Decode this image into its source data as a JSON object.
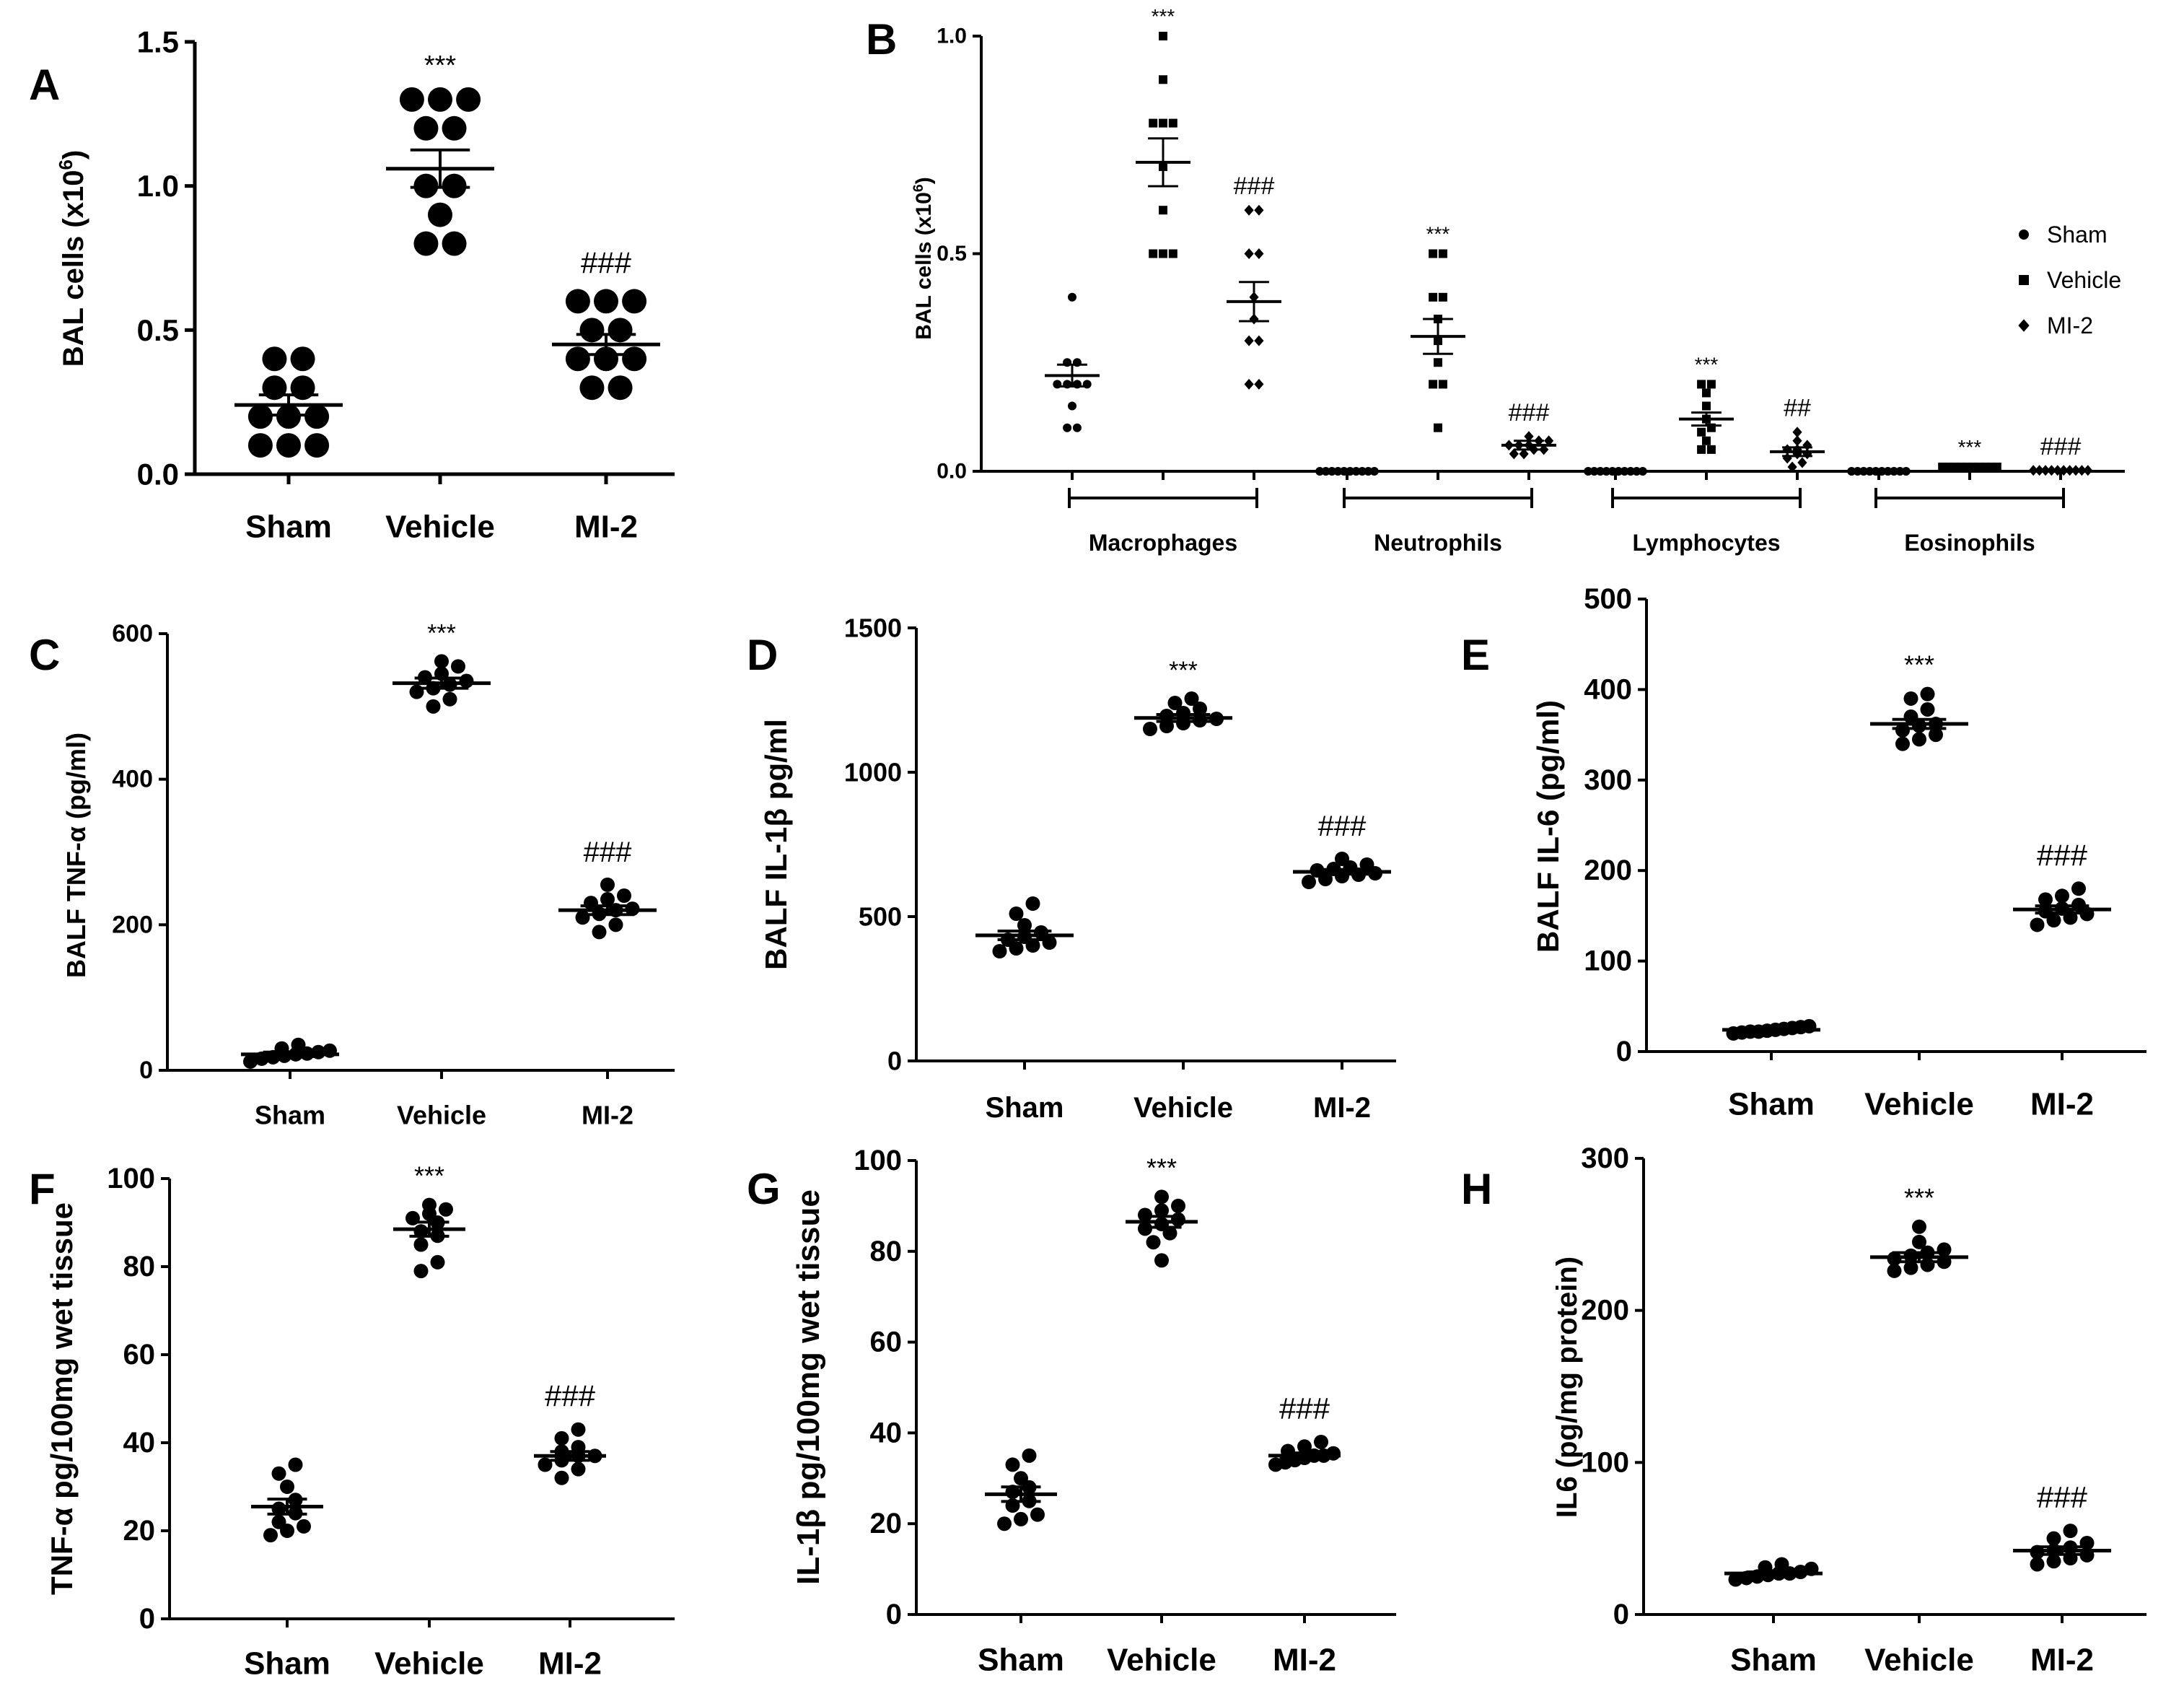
{
  "chart_data": [
    {
      "id": "A",
      "panel_label": "A",
      "type": "scatter",
      "title": "",
      "xlabel": "",
      "ylabel": "BAL cells (x10",
      "ylabel_sup": "6",
      "ylabel_end": ")",
      "categories": [
        "Sham",
        "Vehicle",
        "MI-2"
      ],
      "ylim": [
        0,
        1.5
      ],
      "yticks": [
        0,
        0.5,
        1,
        1.5
      ],
      "ytick_labels": [
        "0.0",
        "0.5",
        "1.0",
        "1.5"
      ],
      "significance": [
        "",
        "***",
        "###"
      ],
      "means": [
        0.24,
        1.06,
        0.45
      ],
      "sem": [
        0.035,
        0.065,
        0.035
      ],
      "points": [
        [
          0.1,
          0.1,
          0.1,
          0.2,
          0.2,
          0.2,
          0.3,
          0.3,
          0.4,
          0.4
        ],
        [
          0.8,
          0.8,
          0.9,
          1.0,
          1.0,
          1.2,
          1.2,
          1.3,
          1.3,
          1.3
        ],
        [
          0.3,
          0.3,
          0.4,
          0.4,
          0.4,
          0.5,
          0.5,
          0.6,
          0.6,
          0.6
        ]
      ]
    },
    {
      "id": "B",
      "panel_label": "B",
      "type": "scatter",
      "title": "",
      "xlabel": "",
      "ylabel": "BAL cells (x10",
      "ylabel_sup": "6",
      "ylabel_end": ")",
      "groups": [
        "Macrophages",
        "Neutrophils",
        "Lymphocytes",
        "Eosinophils"
      ],
      "ylim": [
        0,
        1.0
      ],
      "yticks": [
        0,
        0.5,
        1.0
      ],
      "ytick_labels": [
        "0.0",
        "0.5",
        "1.0"
      ],
      "legend": [
        {
          "name": "Sham",
          "marker": "circle"
        },
        {
          "name": "Vehicle",
          "marker": "square"
        },
        {
          "name": "MI-2",
          "marker": "diamond"
        }
      ],
      "significance": [
        [
          "",
          "***",
          "###"
        ],
        [
          "",
          "***",
          "###"
        ],
        [
          "",
          "***",
          "##"
        ],
        [
          "",
          "***",
          "###"
        ]
      ],
      "means": [
        [
          0.22,
          0.71,
          0.39
        ],
        [
          0,
          0.31,
          0.06
        ],
        [
          0,
          0.12,
          0.045
        ],
        [
          0,
          0.01,
          0.002
        ]
      ],
      "sem": [
        [
          0.025,
          0.055,
          0.045
        ],
        [
          0,
          0.04,
          0.01
        ],
        [
          0,
          0.015,
          0.01
        ],
        [
          0,
          0.003,
          0.001
        ]
      ],
      "points": [
        [
          [
            0.1,
            0.1,
            0.15,
            0.2,
            0.2,
            0.2,
            0.2,
            0.25,
            0.25,
            0.4
          ],
          [
            0.5,
            0.5,
            0.5,
            0.6,
            0.7,
            0.8,
            0.8,
            0.8,
            0.9,
            1.0
          ],
          [
            0.2,
            0.2,
            0.3,
            0.3,
            0.35,
            0.4,
            0.5,
            0.5,
            0.6,
            0.6
          ]
        ],
        [
          [
            0,
            0,
            0,
            0,
            0,
            0,
            0,
            0,
            0,
            0
          ],
          [
            0.1,
            0.2,
            0.2,
            0.25,
            0.3,
            0.35,
            0.4,
            0.4,
            0.5,
            0.5
          ],
          [
            0.04,
            0.04,
            0.05,
            0.05,
            0.06,
            0.06,
            0.06,
            0.07,
            0.07,
            0.08
          ]
        ],
        [
          [
            0,
            0,
            0,
            0,
            0,
            0,
            0,
            0,
            0,
            0
          ],
          [
            0.05,
            0.05,
            0.07,
            0.09,
            0.1,
            0.12,
            0.15,
            0.18,
            0.2,
            0.2
          ],
          [
            0.01,
            0.02,
            0.03,
            0.04,
            0.04,
            0.05,
            0.05,
            0.06,
            0.07,
            0.09
          ]
        ],
        [
          [
            0,
            0,
            0,
            0,
            0,
            0,
            0,
            0,
            0,
            0
          ],
          [
            0.01,
            0.01,
            0.01,
            0.01,
            0.01,
            0.01,
            0.01,
            0.01,
            0.01,
            0.01
          ],
          [
            0.002,
            0.002,
            0.002,
            0.002,
            0.002,
            0.002,
            0.002,
            0.002,
            0.002,
            0.002
          ]
        ]
      ]
    },
    {
      "id": "C",
      "panel_label": "C",
      "type": "scatter",
      "title": "",
      "xlabel": "",
      "ylabel": "BALF TNF-α (pg/ml)",
      "categories": [
        "Sham",
        "Vehicle",
        "MI-2"
      ],
      "ylim": [
        0,
        600
      ],
      "yticks": [
        0,
        200,
        400,
        600
      ],
      "ytick_labels": [
        "0",
        "200",
        "400",
        "600"
      ],
      "significance": [
        "",
        "***",
        "###"
      ],
      "means": [
        22,
        532,
        220
      ],
      "sem": [
        3,
        7,
        6
      ],
      "points": [
        [
          12,
          16,
          18,
          20,
          22,
          23,
          25,
          27,
          30,
          35
        ],
        [
          500,
          510,
          520,
          525,
          530,
          535,
          540,
          545,
          555,
          562
        ],
        [
          190,
          200,
          210,
          215,
          220,
          222,
          230,
          235,
          240,
          255
        ]
      ]
    },
    {
      "id": "D",
      "panel_label": "D",
      "type": "scatter",
      "title": "",
      "xlabel": "",
      "ylabel": "BALF IL-1β  pg/ml",
      "categories": [
        "Sham",
        "Vehicle",
        "MI-2"
      ],
      "ylim": [
        0,
        1500
      ],
      "yticks": [
        0,
        500,
        1000,
        1500
      ],
      "ytick_labels": [
        "0",
        "500",
        "1000",
        "1500"
      ],
      "significance": [
        "",
        "***",
        "###"
      ],
      "means": [
        435,
        1188,
        655
      ],
      "sem": [
        15,
        12,
        8
      ],
      "points": [
        [
          380,
          390,
          400,
          410,
          420,
          430,
          445,
          470,
          510,
          545
        ],
        [
          1150,
          1160,
          1170,
          1180,
          1185,
          1195,
          1205,
          1220,
          1240,
          1255
        ],
        [
          620,
          630,
          640,
          645,
          650,
          660,
          665,
          670,
          680,
          700
        ]
      ]
    },
    {
      "id": "E",
      "panel_label": "E",
      "type": "scatter",
      "title": "",
      "xlabel": "",
      "ylabel": "BALF IL-6 (pg/ml)",
      "categories": [
        "Sham",
        "Vehicle",
        "MI-2"
      ],
      "ylim": [
        0,
        500
      ],
      "yticks": [
        0,
        100,
        200,
        300,
        400,
        500
      ],
      "ytick_labels": [
        "0",
        "100",
        "200",
        "300",
        "400",
        "500"
      ],
      "significance": [
        "",
        "***",
        "###"
      ],
      "means": [
        24,
        362,
        157
      ],
      "sem": [
        1.5,
        5,
        4
      ],
      "points": [
        [
          20,
          21,
          22,
          22,
          23,
          24,
          25,
          26,
          27,
          28
        ],
        [
          340,
          345,
          350,
          355,
          360,
          362,
          370,
          378,
          390,
          395
        ],
        [
          140,
          145,
          148,
          152,
          155,
          158,
          162,
          168,
          172,
          180
        ]
      ]
    },
    {
      "id": "F",
      "panel_label": "F",
      "type": "scatter",
      "title": "",
      "xlabel": "",
      "ylabel": "TNF-α  pg/100mg wet tissue",
      "categories": [
        "Sham",
        "Vehicle",
        "MI-2"
      ],
      "ylim": [
        0,
        100
      ],
      "yticks": [
        0,
        20,
        40,
        60,
        80,
        100
      ],
      "ytick_labels": [
        "0",
        "20",
        "40",
        "60",
        "80",
        "100"
      ],
      "significance": [
        "",
        "***",
        "###"
      ],
      "means": [
        25.5,
        88.5,
        37
      ],
      "sem": [
        1.7,
        1.6,
        1
      ],
      "points": [
        [
          19,
          20,
          21,
          22,
          24,
          25,
          27,
          30,
          33,
          35
        ],
        [
          79,
          81,
          85,
          87,
          88,
          90,
          91,
          92,
          93,
          94
        ],
        [
          32,
          34,
          35,
          36,
          37,
          37,
          38,
          39,
          41,
          43
        ]
      ]
    },
    {
      "id": "G",
      "panel_label": "G",
      "type": "scatter",
      "title": "",
      "xlabel": "",
      "ylabel": "IL-1β  pg/100mg wet tissue",
      "categories": [
        "Sham",
        "Vehicle",
        "MI-2"
      ],
      "ylim": [
        0,
        100
      ],
      "yticks": [
        0,
        20,
        40,
        60,
        80,
        100
      ],
      "ytick_labels": [
        "0",
        "20",
        "40",
        "60",
        "80",
        "100"
      ],
      "significance": [
        "",
        "***",
        "###"
      ],
      "means": [
        26.5,
        86.5,
        35
      ],
      "sem": [
        1.6,
        1.2,
        0.6
      ],
      "points": [
        [
          20,
          21,
          22,
          24,
          25,
          27,
          28,
          30,
          33,
          35
        ],
        [
          78,
          82,
          84,
          85,
          86,
          87,
          88,
          89,
          90,
          92
        ],
        [
          33,
          33.5,
          34,
          34.5,
          35,
          35,
          35.5,
          36,
          37,
          38
        ]
      ]
    },
    {
      "id": "H",
      "panel_label": "H",
      "type": "scatter",
      "title": "",
      "xlabel": "",
      "ylabel": "IL6 (pg/mg protein)",
      "categories": [
        "Sham",
        "Vehicle",
        "MI-2"
      ],
      "ylim": [
        0,
        300
      ],
      "yticks": [
        0,
        100,
        200,
        300
      ],
      "ytick_labels": [
        "0",
        "100",
        "200",
        "300"
      ],
      "significance": [
        "",
        "***",
        "###"
      ],
      "means": [
        27,
        235,
        42
      ],
      "sem": [
        1,
        3,
        2.5
      ],
      "points": [
        [
          23,
          24,
          25,
          26,
          27,
          27,
          28,
          30,
          31,
          33
        ],
        [
          226,
          228,
          230,
          232,
          234,
          236,
          238,
          240,
          245,
          255
        ],
        [
          33,
          35,
          37,
          39,
          41,
          42,
          44,
          47,
          50,
          55
        ]
      ]
    }
  ]
}
